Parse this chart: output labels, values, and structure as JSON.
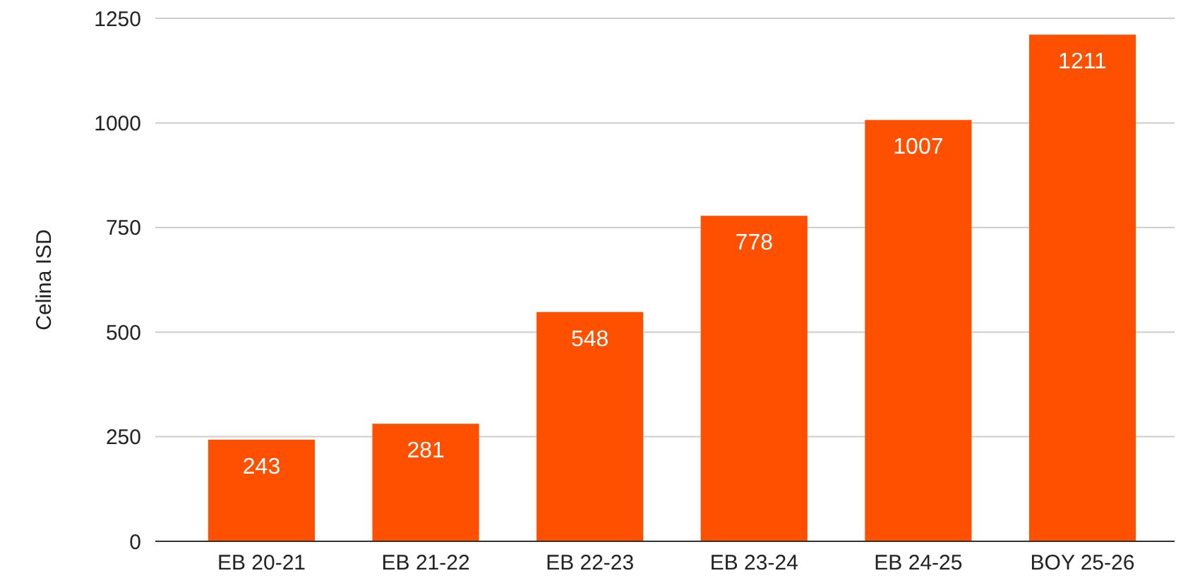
{
  "chart_data": {
    "type": "bar",
    "ylabel": "Celina ISD",
    "categories": [
      "EB 20-21",
      "EB 21-22",
      "EB 22-23",
      "EB 23-24",
      "EB 24-25",
      "BOY 25-26"
    ],
    "values": [
      243,
      281,
      548,
      778,
      1007,
      1211
    ],
    "color": "#ff5000",
    "ylim": [
      0,
      1250
    ],
    "yticks": [
      0,
      250,
      500,
      750,
      1000,
      1250
    ],
    "grid": "y",
    "data_labels": true
  }
}
